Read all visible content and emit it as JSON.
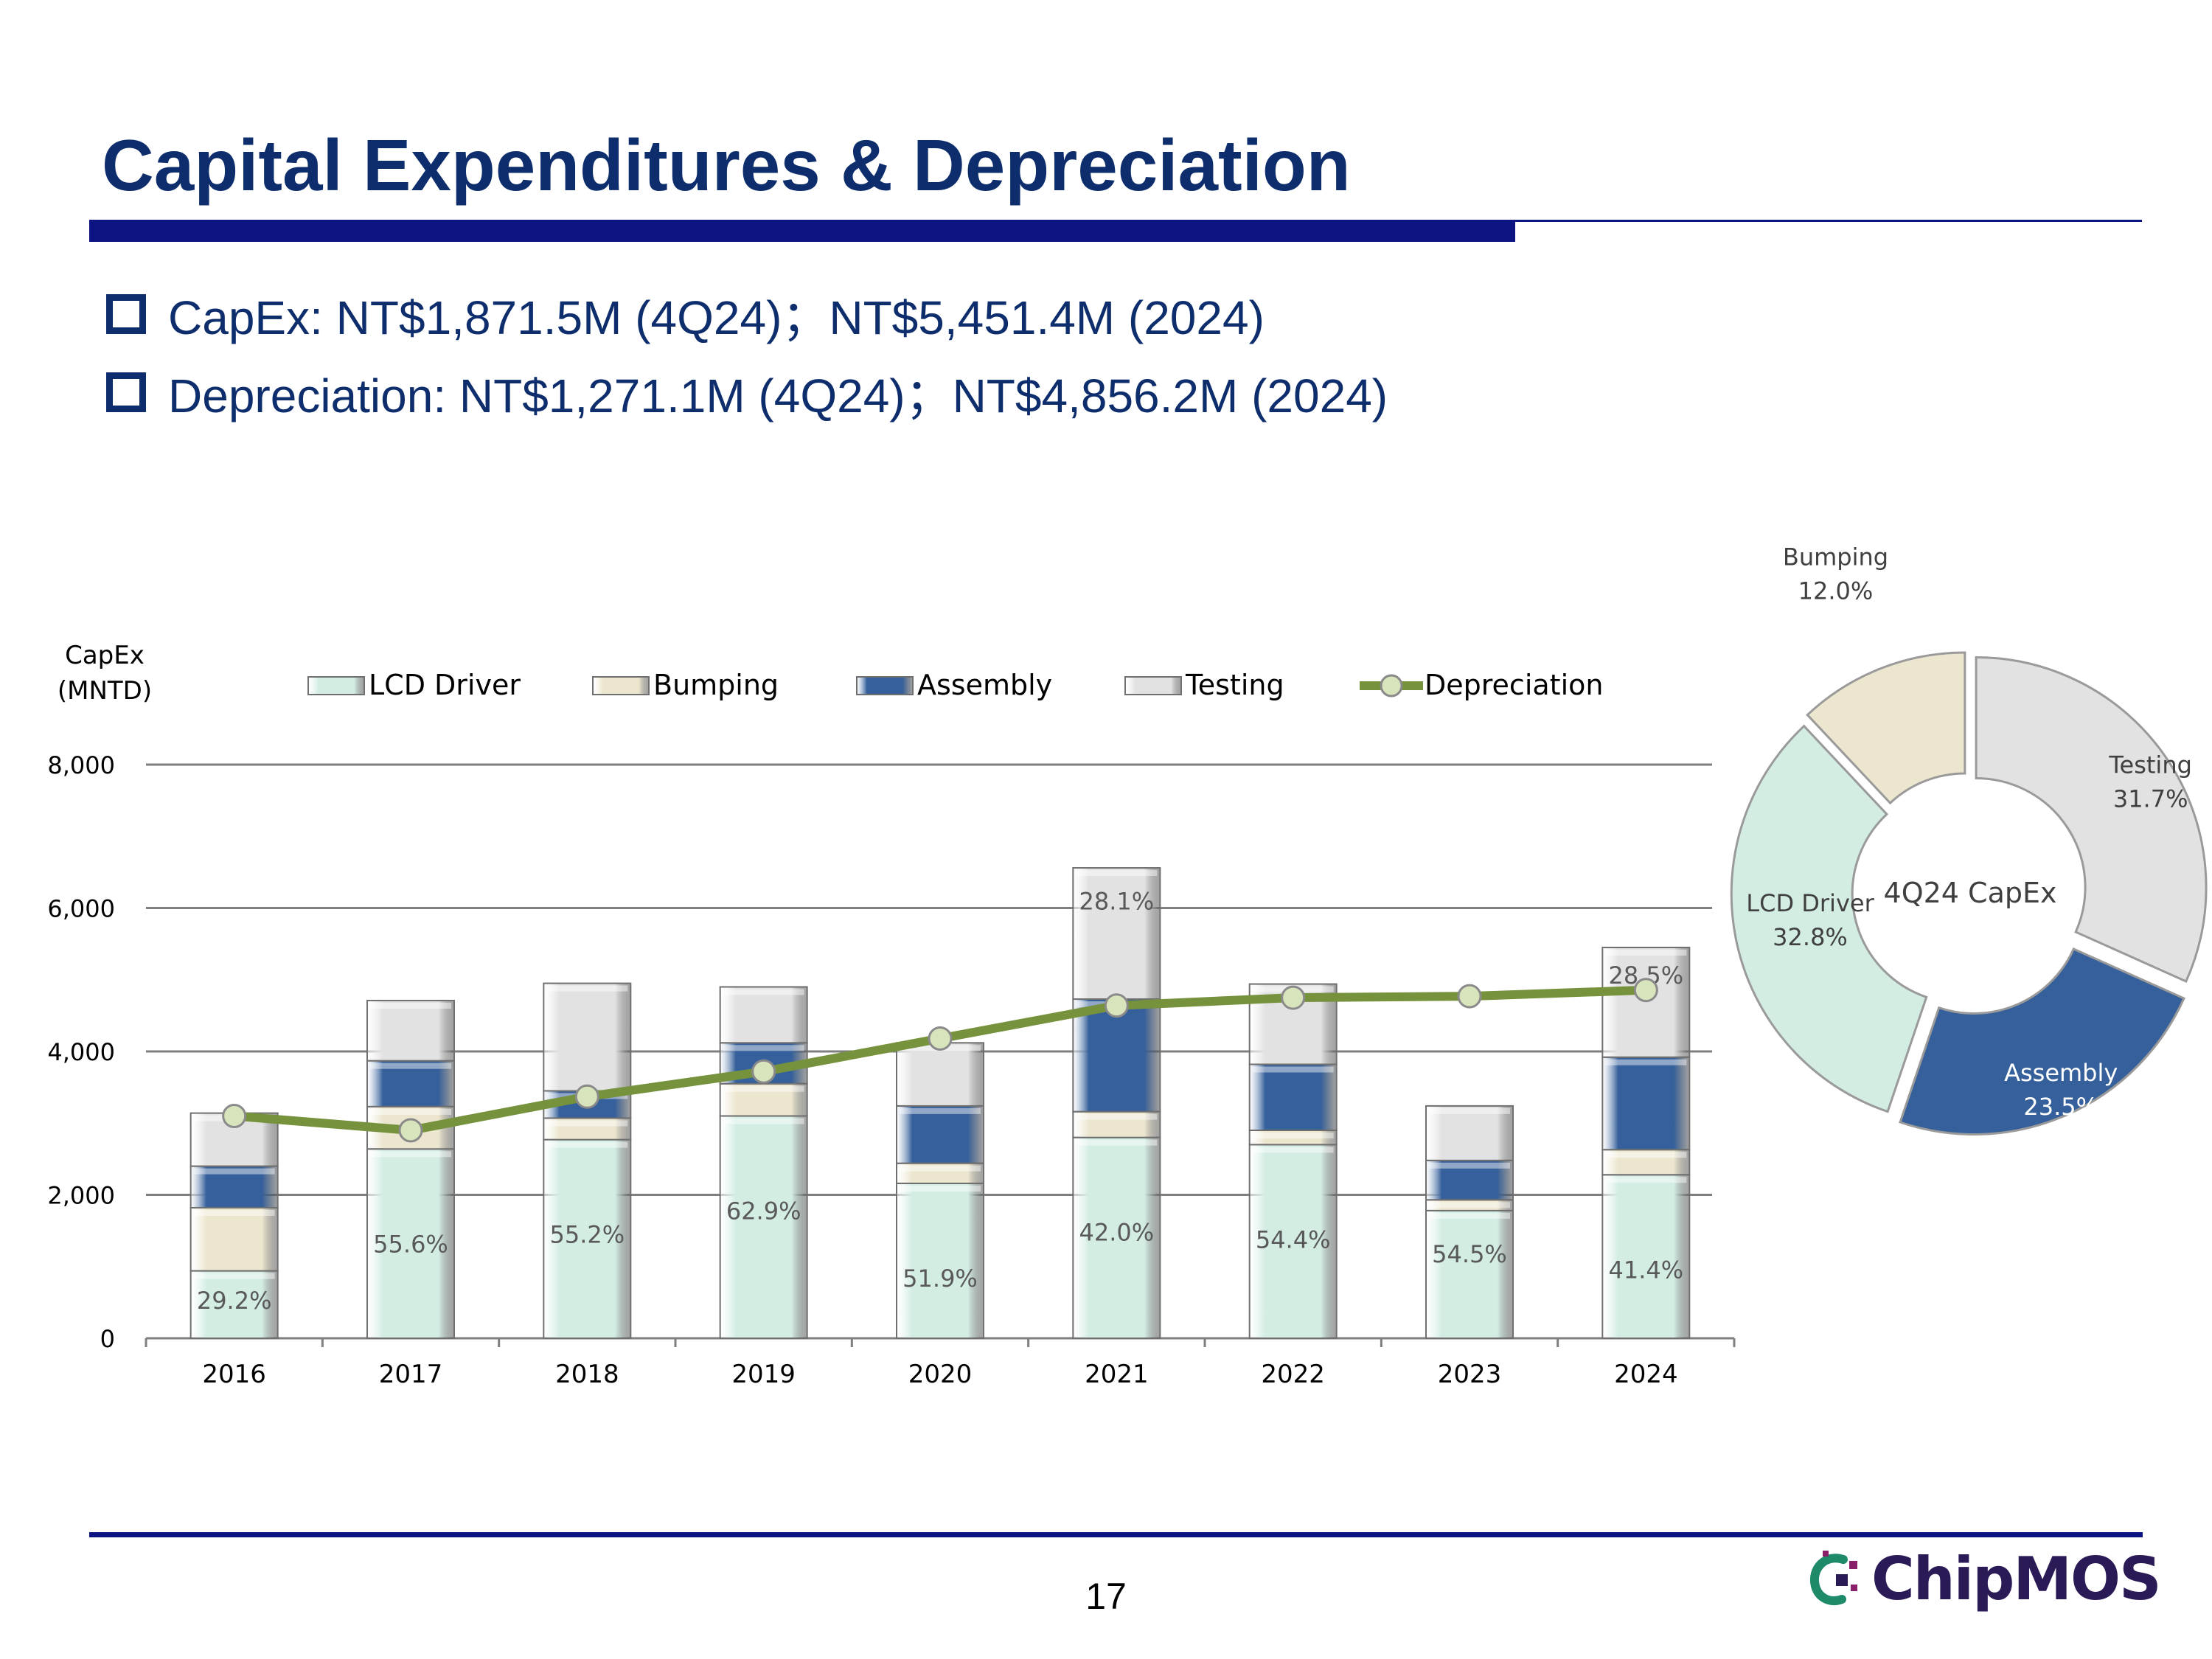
{
  "slide": {
    "title": "Capital Expenditures & Depreciation",
    "bullets": [
      "CapEx: NT$1,871.5M (4Q24)；NT$5,451.4M (2024)",
      "Depreciation: NT$1,271.1M (4Q24)；NT$4,856.2M (2024)"
    ],
    "page_number": "17",
    "logo_text": "ChipMOS"
  },
  "colors": {
    "title": "#0d2d6c",
    "rule": "#0b1480",
    "lcd_driver": "#d3ede3",
    "bumping": "#ece6cf",
    "assembly": "#35609b",
    "testing": "#e2e2e2",
    "depreciation": "#76923c"
  },
  "chart_data": [
    {
      "type": "bar",
      "stacked": true,
      "ylabel": "CapEx (MNTD)",
      "ylabel_lines": [
        "CapEx",
        "(MNTD)"
      ],
      "ylim": [
        0,
        8000
      ],
      "yticks": [
        0,
        2000,
        4000,
        6000,
        8000
      ],
      "ytick_labels": [
        "0",
        "2,000",
        "4,000",
        "6,000",
        "8,000"
      ],
      "grid": true,
      "legend_position": "top",
      "categories": [
        "2016",
        "2017",
        "2018",
        "2019",
        "2020",
        "2021",
        "2022",
        "2023",
        "2024"
      ],
      "series": [
        {
          "name": "LCD Driver",
          "values": [
            940,
            2640,
            2770,
            3100,
            2160,
            2800,
            2700,
            1780,
            2280
          ]
        },
        {
          "name": "Bumping",
          "values": [
            880,
            590,
            300,
            450,
            280,
            360,
            200,
            150,
            350
          ]
        },
        {
          "name": "Assembly",
          "values": [
            580,
            640,
            380,
            570,
            800,
            1570,
            920,
            550,
            1290
          ]
        },
        {
          "name": "Testing",
          "values": [
            740,
            840,
            1500,
            780,
            880,
            1830,
            1120,
            760,
            1530
          ]
        }
      ],
      "line_series": {
        "name": "Depreciation",
        "values": [
          3100,
          2900,
          3370,
          3720,
          4180,
          4640,
          4750,
          4770,
          4856
        ]
      },
      "data_labels": [
        "29.2%",
        "55.6%",
        "55.2%",
        "62.9%",
        "51.9%",
        "42.0%",
        "54.4%",
        "54.5%",
        "41.4%"
      ],
      "extra_labels": [
        {
          "year": "2021",
          "series": "Testing",
          "text": "28.1%"
        },
        {
          "year": "2024",
          "series": "Testing",
          "text": "28.5%"
        }
      ]
    },
    {
      "type": "pie",
      "donut": true,
      "title": "4Q24 CapEx",
      "slices": [
        {
          "name": "Testing",
          "value": 31.7,
          "label": "31.7%"
        },
        {
          "name": "Assembly",
          "value": 23.5,
          "label": "23.5%"
        },
        {
          "name": "LCD Driver",
          "value": 32.8,
          "label": "32.8%"
        },
        {
          "name": "Bumping",
          "value": 12.0,
          "label": "12.0%"
        }
      ]
    }
  ]
}
